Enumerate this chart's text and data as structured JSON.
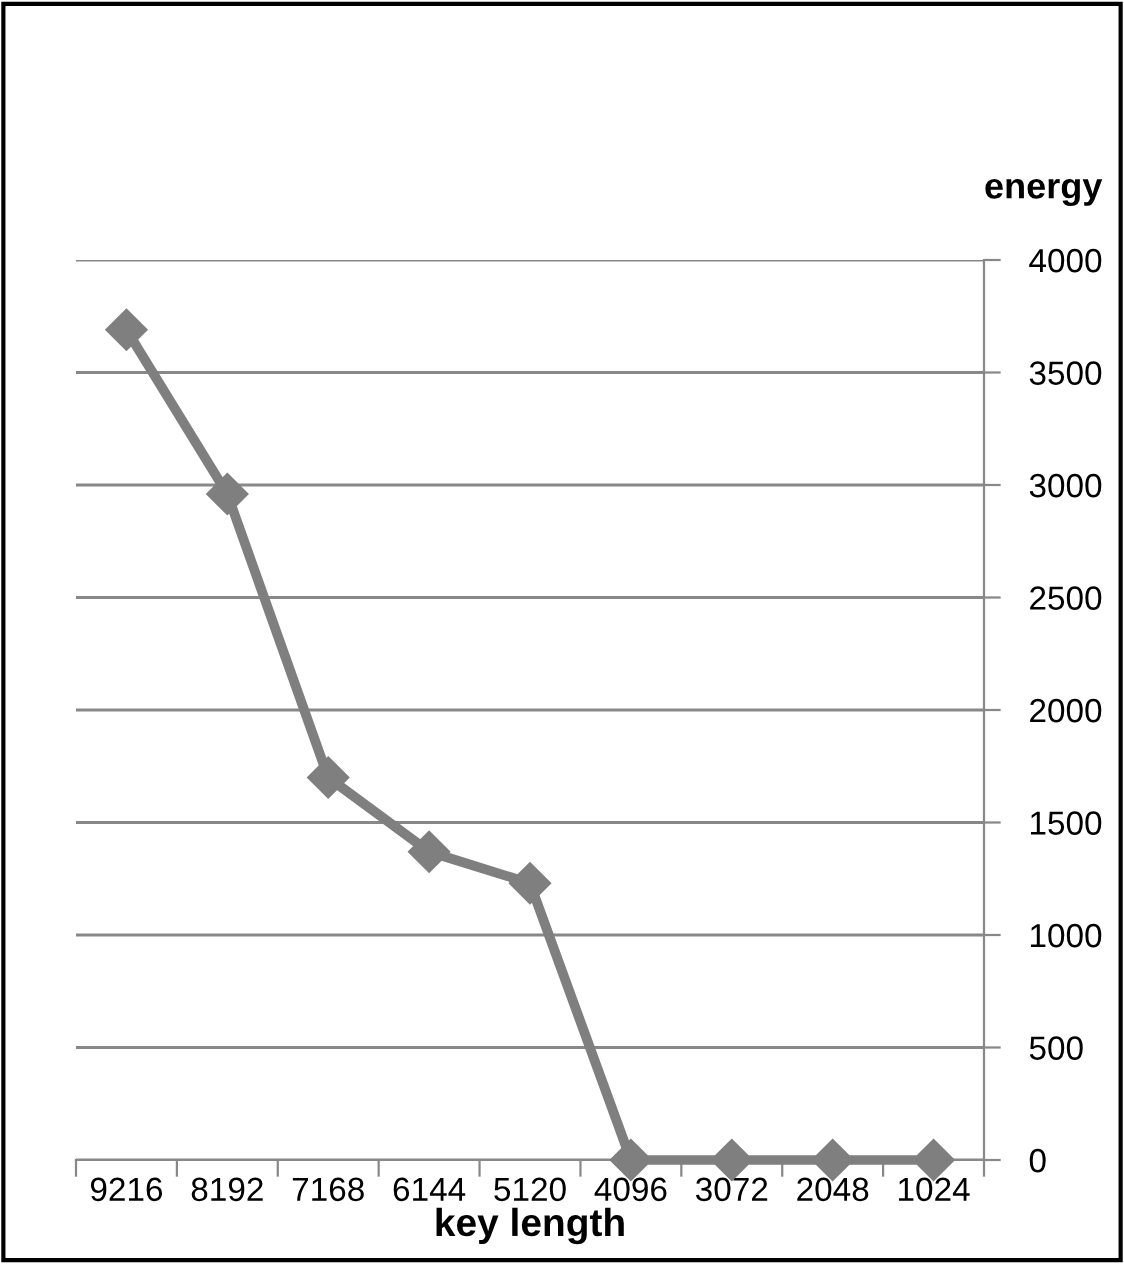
{
  "chart_data": {
    "type": "line",
    "xlabel": "key length",
    "ylabel": "energy",
    "categories": [
      "9216",
      "8192",
      "7168",
      "6144",
      "5120",
      "4096",
      "3072",
      "2048",
      "1024"
    ],
    "series": [
      {
        "color": "#7f7f7f",
        "values": [
          3690,
          2960,
          1700,
          1370,
          1230,
          0,
          0,
          0,
          0
        ]
      }
    ],
    "ylim": [
      0,
      4000
    ],
    "yticks": [
      0,
      500,
      1000,
      1500,
      2000,
      2500,
      3000,
      3500,
      4000
    ],
    "grid": "y",
    "marker": "diamond",
    "line_style": "solid",
    "legend": false
  }
}
